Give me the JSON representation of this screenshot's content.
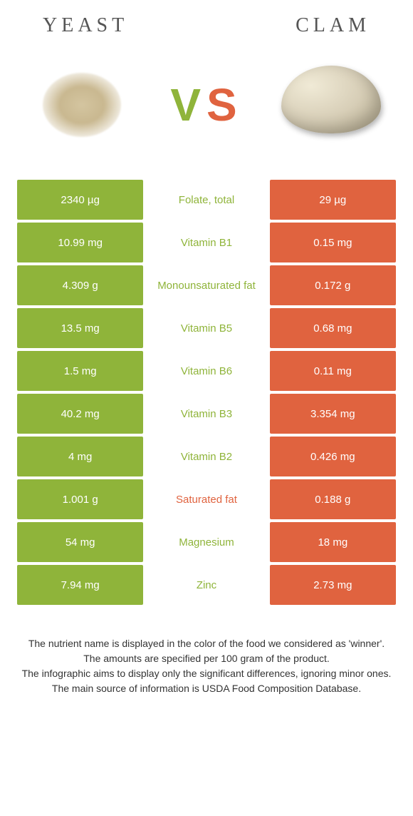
{
  "header": {
    "left_title": "YEAST",
    "right_title": "CLAM"
  },
  "vs": {
    "v": "V",
    "s": "S"
  },
  "colors": {
    "left": "#8fb43a",
    "right": "#e0633f",
    "background": "#ffffff"
  },
  "table": {
    "rows": [
      {
        "left": "2340 µg",
        "label": "Folate, total",
        "right": "29 µg",
        "winner": "left"
      },
      {
        "left": "10.99 mg",
        "label": "Vitamin B1",
        "right": "0.15 mg",
        "winner": "left"
      },
      {
        "left": "4.309 g",
        "label": "Monounsaturated fat",
        "right": "0.172 g",
        "winner": "left"
      },
      {
        "left": "13.5 mg",
        "label": "Vitamin B5",
        "right": "0.68 mg",
        "winner": "left"
      },
      {
        "left": "1.5 mg",
        "label": "Vitamin B6",
        "right": "0.11 mg",
        "winner": "left"
      },
      {
        "left": "40.2 mg",
        "label": "Vitamin B3",
        "right": "3.354 mg",
        "winner": "left"
      },
      {
        "left": "4 mg",
        "label": "Vitamin B2",
        "right": "0.426 mg",
        "winner": "left"
      },
      {
        "left": "1.001 g",
        "label": "Saturated fat",
        "right": "0.188 g",
        "winner": "right"
      },
      {
        "left": "54 mg",
        "label": "Magnesium",
        "right": "18 mg",
        "winner": "left"
      },
      {
        "left": "7.94 mg",
        "label": "Zinc",
        "right": "2.73 mg",
        "winner": "left"
      }
    ]
  },
  "footer": {
    "line1": "The nutrient name is displayed in the color of the food we considered as 'winner'.",
    "line2": "The amounts are specified per 100 gram of the product.",
    "line3": "The infographic aims to display only the significant differences, ignoring minor ones.",
    "line4": "The main source of information is USDA Food Composition Database."
  }
}
